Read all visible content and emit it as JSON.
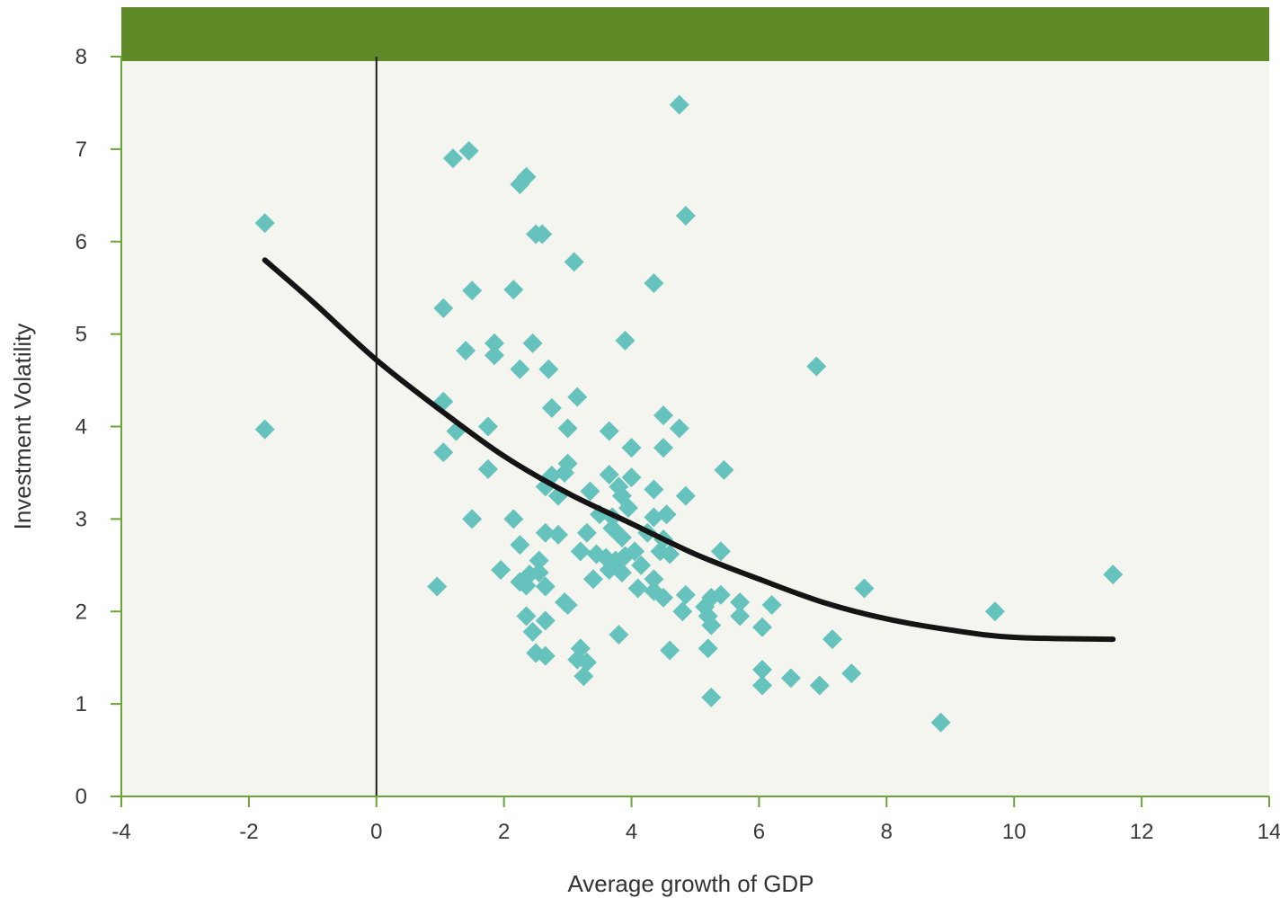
{
  "colors": {
    "plot_background": "#f5f5ef",
    "header_band": "#5e8a28",
    "axis": "#6aa53a",
    "points": "#66c2bc",
    "trend_line": "#141414",
    "zero_line": "#1a1a1a"
  },
  "chart_data": {
    "type": "scatter",
    "title": "",
    "xlabel": "Average growth of GDP",
    "ylabel": "Investment Volatility",
    "xlim": [
      -4,
      14
    ],
    "ylim": [
      0,
      8
    ],
    "xticks": [
      -4,
      -2,
      0,
      2,
      4,
      6,
      8,
      10,
      12,
      14
    ],
    "yticks": [
      0,
      1,
      2,
      3,
      4,
      5,
      6,
      7,
      8
    ],
    "grid": false,
    "vertical_reference_line_x": 0,
    "points": [
      [
        -1.75,
        6.2
      ],
      [
        -1.75,
        3.97
      ],
      [
        1.2,
        6.9
      ],
      [
        1.45,
        6.98
      ],
      [
        4.75,
        7.48
      ],
      [
        4.85,
        6.28
      ],
      [
        2.25,
        6.62
      ],
      [
        2.35,
        6.7
      ],
      [
        2.5,
        6.08
      ],
      [
        2.6,
        6.08
      ],
      [
        3.1,
        5.78
      ],
      [
        2.15,
        5.48
      ],
      [
        1.5,
        5.47
      ],
      [
        1.05,
        5.28
      ],
      [
        4.35,
        5.55
      ],
      [
        3.9,
        4.93
      ],
      [
        1.4,
        4.82
      ],
      [
        1.85,
        4.9
      ],
      [
        1.85,
        4.77
      ],
      [
        2.45,
        4.9
      ],
      [
        2.25,
        4.62
      ],
      [
        2.7,
        4.62
      ],
      [
        6.9,
        4.65
      ],
      [
        1.05,
        4.27
      ],
      [
        3.15,
        4.32
      ],
      [
        2.75,
        4.2
      ],
      [
        4.5,
        4.12
      ],
      [
        1.25,
        3.95
      ],
      [
        1.75,
        4.0
      ],
      [
        3.0,
        3.98
      ],
      [
        3.65,
        3.95
      ],
      [
        4.75,
        3.98
      ],
      [
        1.05,
        3.72
      ],
      [
        4.0,
        3.77
      ],
      [
        4.5,
        3.77
      ],
      [
        1.75,
        3.54
      ],
      [
        3.0,
        3.6
      ],
      [
        5.45,
        3.53
      ],
      [
        2.95,
        3.5
      ],
      [
        2.75,
        3.47
      ],
      [
        2.65,
        3.35
      ],
      [
        2.85,
        3.25
      ],
      [
        3.65,
        3.48
      ],
      [
        3.8,
        3.35
      ],
      [
        4.0,
        3.45
      ],
      [
        3.35,
        3.3
      ],
      [
        3.85,
        3.25
      ],
      [
        3.95,
        3.12
      ],
      [
        4.35,
        3.32
      ],
      [
        4.85,
        3.25
      ],
      [
        3.5,
        3.05
      ],
      [
        3.7,
        3.02
      ],
      [
        4.35,
        3.02
      ],
      [
        4.55,
        3.05
      ],
      [
        1.5,
        3.0
      ],
      [
        2.15,
        3.0
      ],
      [
        2.65,
        2.85
      ],
      [
        2.85,
        2.83
      ],
      [
        3.3,
        2.85
      ],
      [
        3.7,
        2.9
      ],
      [
        3.85,
        2.8
      ],
      [
        4.25,
        2.85
      ],
      [
        4.5,
        2.78
      ],
      [
        2.25,
        2.72
      ],
      [
        3.2,
        2.65
      ],
      [
        3.45,
        2.62
      ],
      [
        3.6,
        2.58
      ],
      [
        3.75,
        2.55
      ],
      [
        3.9,
        2.6
      ],
      [
        4.05,
        2.65
      ],
      [
        4.45,
        2.65
      ],
      [
        4.6,
        2.62
      ],
      [
        5.4,
        2.65
      ],
      [
        2.55,
        2.55
      ],
      [
        3.65,
        2.45
      ],
      [
        3.85,
        2.42
      ],
      [
        4.15,
        2.5
      ],
      [
        1.95,
        2.45
      ],
      [
        2.4,
        2.4
      ],
      [
        2.55,
        2.42
      ],
      [
        3.4,
        2.35
      ],
      [
        4.35,
        2.35
      ],
      [
        0.95,
        2.27
      ],
      [
        2.25,
        2.32
      ],
      [
        2.35,
        2.28
      ],
      [
        2.65,
        2.27
      ],
      [
        4.1,
        2.25
      ],
      [
        4.35,
        2.22
      ],
      [
        4.5,
        2.15
      ],
      [
        4.85,
        2.18
      ],
      [
        5.25,
        2.15
      ],
      [
        5.4,
        2.18
      ],
      [
        5.7,
        2.1
      ],
      [
        2.95,
        2.1
      ],
      [
        3.0,
        2.07
      ],
      [
        5.15,
        2.05
      ],
      [
        6.2,
        2.07
      ],
      [
        7.65,
        2.25
      ],
      [
        9.7,
        2.0
      ],
      [
        11.55,
        2.4
      ],
      [
        2.35,
        1.95
      ],
      [
        2.65,
        1.9
      ],
      [
        4.8,
        2.0
      ],
      [
        5.2,
        1.95
      ],
      [
        5.7,
        1.95
      ],
      [
        5.25,
        1.85
      ],
      [
        6.05,
        1.83
      ],
      [
        2.45,
        1.78
      ],
      [
        3.8,
        1.75
      ],
      [
        7.15,
        1.7
      ],
      [
        5.2,
        1.6
      ],
      [
        4.6,
        1.58
      ],
      [
        3.2,
        1.6
      ],
      [
        2.5,
        1.55
      ],
      [
        2.65,
        1.52
      ],
      [
        3.15,
        1.48
      ],
      [
        3.3,
        1.45
      ],
      [
        6.05,
        1.37
      ],
      [
        3.25,
        1.3
      ],
      [
        6.5,
        1.28
      ],
      [
        7.45,
        1.33
      ],
      [
        6.05,
        1.2
      ],
      [
        6.95,
        1.2
      ],
      [
        5.25,
        1.07
      ],
      [
        8.85,
        0.8
      ]
    ],
    "trend_curve": [
      [
        -1.75,
        5.8
      ],
      [
        -1.0,
        5.35
      ],
      [
        0.0,
        4.72
      ],
      [
        1.0,
        4.18
      ],
      [
        2.0,
        3.68
      ],
      [
        3.0,
        3.28
      ],
      [
        4.0,
        2.95
      ],
      [
        5.0,
        2.62
      ],
      [
        6.0,
        2.35
      ],
      [
        7.0,
        2.1
      ],
      [
        8.0,
        1.92
      ],
      [
        9.0,
        1.8
      ],
      [
        10.0,
        1.72
      ],
      [
        11.55,
        1.7
      ]
    ]
  }
}
